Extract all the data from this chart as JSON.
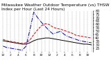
{
  "title": "Milwaukee Weather Outdoor Temperature (vs) THSW Index per Hour (Last 24 Hours)",
  "title_fontsize": 4.2,
  "background_color": "#ffffff",
  "grid_color": "#888888",
  "hours": [
    0,
    1,
    2,
    3,
    4,
    5,
    6,
    7,
    8,
    9,
    10,
    11,
    12,
    13,
    14,
    15,
    16,
    17,
    18,
    19,
    20,
    21,
    22,
    23
  ],
  "temp": [
    38,
    36,
    35,
    34,
    33,
    32,
    33,
    37,
    45,
    52,
    58,
    61,
    60,
    56,
    54,
    53,
    51,
    49,
    47,
    44,
    43,
    42,
    41,
    40
  ],
  "thsw": [
    28,
    26,
    25,
    24,
    23,
    22,
    28,
    52,
    78,
    70,
    63,
    57,
    51,
    46,
    48,
    50,
    45,
    42,
    40,
    38,
    36,
    35,
    34,
    33
  ],
  "dew": [
    36,
    35,
    34,
    33,
    32,
    31,
    31,
    33,
    36,
    38,
    39,
    40,
    40,
    39,
    38,
    37,
    36,
    35,
    34,
    33,
    32,
    31,
    31,
    30
  ],
  "temp_color": "#dd0000",
  "thsw_color": "#0000cc",
  "dew_color": "#000000",
  "temp_style": "--",
  "thsw_style": "-.",
  "dew_style": "-",
  "ylim": [
    20,
    80
  ],
  "yticks": [
    25,
    30,
    35,
    40,
    45,
    50,
    55,
    60,
    65,
    70,
    75,
    80
  ],
  "ylabel_fontsize": 3.5,
  "xtick_fontsize": 3.2,
  "line_width": 0.7,
  "figsize": [
    1.6,
    0.87
  ],
  "dpi": 100
}
